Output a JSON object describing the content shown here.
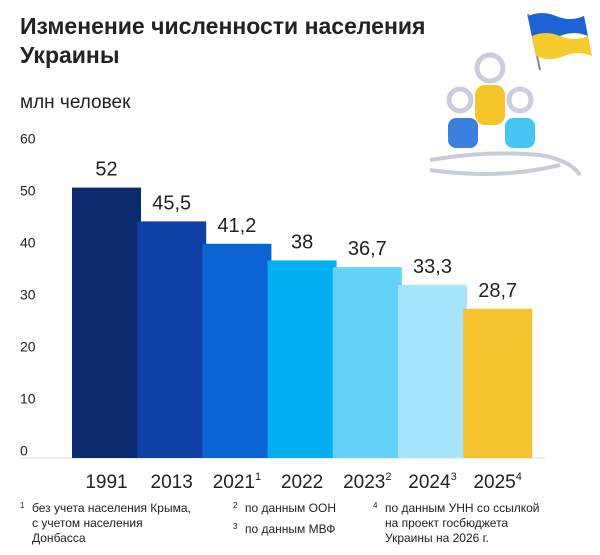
{
  "chart_data": {
    "type": "bar",
    "title": [
      "Изменение численности населения",
      "Украины"
    ],
    "ylabel": "млн человек",
    "categories": [
      "1991",
      "2013",
      "2021",
      "2022",
      "2023",
      "2024",
      "2025"
    ],
    "category_notes": [
      null,
      null,
      "1",
      null,
      "2",
      "3",
      "4"
    ],
    "values": [
      52,
      45.5,
      41.2,
      38,
      36.7,
      33.3,
      28.7
    ],
    "value_labels": [
      "52",
      "45,5",
      "41,2",
      "38",
      "36,7",
      "33,3",
      "28,7"
    ],
    "colors": [
      "#0b2a6e",
      "#0e40a6",
      "#0a64d3",
      "#02aff0",
      "#62d2f8",
      "#a6e5fb",
      "#f5c22f"
    ],
    "ylim": [
      0,
      60
    ],
    "yticks": [
      0,
      10,
      20,
      30,
      40,
      50,
      60
    ],
    "grid": false,
    "footnotes": [
      {
        "mark": "1",
        "lines": [
          "без учета населения Крыма,",
          "с учетом населения",
          "Донбасса"
        ]
      },
      {
        "mark": "2",
        "lines": [
          "по данным ООН"
        ]
      },
      {
        "mark": "3",
        "lines": [
          "по данным МВФ"
        ]
      },
      {
        "mark": "4",
        "lines": [
          "по данным УНН со ссылкой",
          "на проект госбюджета",
          "Украины на 2026 г."
        ]
      }
    ]
  }
}
